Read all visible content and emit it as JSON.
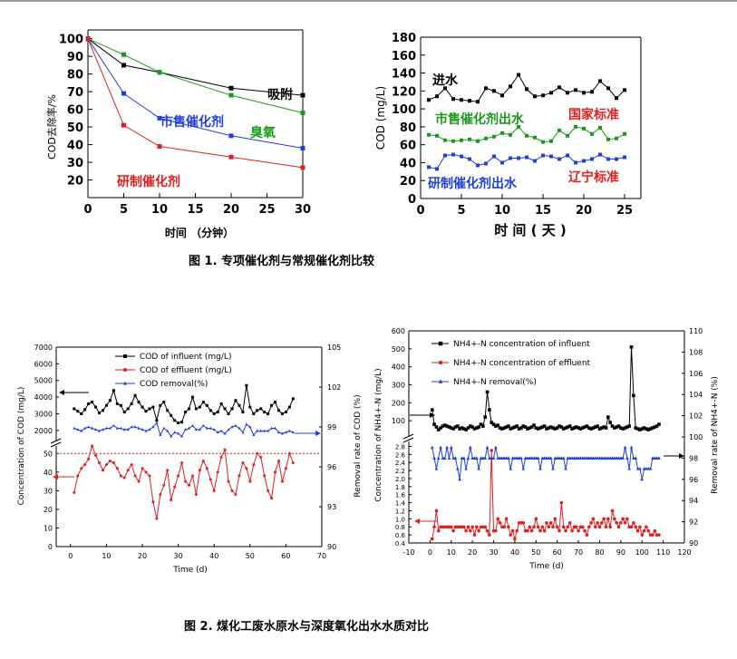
{
  "figure1": {
    "caption": "图 1. 专项催化剂与常规催化剂比较",
    "left": {
      "ylabel": "COD去除率/%",
      "xlabel": "时间 （分钟）",
      "x_ticks": [
        "0",
        "5",
        "10",
        "15",
        "20",
        "25",
        "30"
      ],
      "y_ticks": [
        "20",
        "30",
        "40",
        "50",
        "60",
        "70",
        "80",
        "90",
        "100"
      ],
      "labels": {
        "adsorb": "吸附",
        "ozone": "臭氧",
        "market": "市售催化剂",
        "dev": "研制催化剂"
      }
    },
    "right": {
      "ylabel": "COD (mg/L)",
      "xlabel": "时 间 ( 天 )",
      "x_ticks": [
        "0",
        "5",
        "10",
        "15",
        "20",
        "25"
      ],
      "y_ticks": [
        "0",
        "20",
        "40",
        "60",
        "80",
        "100",
        "120",
        "140",
        "160",
        "180"
      ],
      "labels": {
        "influent": "进水",
        "market": "市售催化剂出水",
        "dev": "研制催化剂出水",
        "national": "国家标准",
        "liaoning": "辽宁标准"
      }
    }
  },
  "figure2": {
    "caption": "图 2. 煤化工废水原水与深度氧化出水水质对比",
    "left": {
      "ylabel": "Concentration of COD (mg/L)",
      "ylabel_right": "Removal rate of COD (%)",
      "xlabel": "Time (d)",
      "x_ticks": [
        "0",
        "10",
        "20",
        "30",
        "40",
        "50",
        "60",
        "70"
      ],
      "y_top_ticks": [
        "2000",
        "3000",
        "4000",
        "5000",
        "6000",
        "7000"
      ],
      "y_bot_ticks": [
        "0",
        "10",
        "20",
        "30",
        "40",
        "50"
      ],
      "y_right_ticks": [
        "90",
        "93",
        "96",
        "99",
        "102",
        "105"
      ],
      "legend": [
        "COD of influent (mg/L)",
        "COD of effluent (mg/L)",
        "COD removal(%)"
      ]
    },
    "right": {
      "ylabel": "Concentration of NH4+-N (mg/L)",
      "ylabel_right": "Removal rate of NH4+-N (%)",
      "xlabel": "Time (d)",
      "x_ticks": [
        "-10",
        "0",
        "10",
        "20",
        "30",
        "40",
        "50",
        "60",
        "70",
        "80",
        "90",
        "100",
        "110",
        "120"
      ],
      "y_top_ticks": [
        "100",
        "200",
        "300",
        "400",
        "500",
        "600"
      ],
      "y_bot_ticks": [
        "0.4",
        "0.6",
        "0.8",
        "1.0",
        "1.2",
        "1.4",
        "1.6",
        "1.8",
        "2.0",
        "2.2",
        "2.4",
        "2.6",
        "2.8"
      ],
      "y_right_ticks": [
        "90",
        "92",
        "94",
        "96",
        "98",
        "100",
        "102",
        "104",
        "106",
        "108",
        "110"
      ],
      "legend": [
        "NH4+-N concentration of influent",
        "NH4+-N concentration of effluent",
        "NH4+-N removal(%)"
      ]
    }
  },
  "colors": {
    "black": "#000000",
    "green": "#1a9a1a",
    "blue": "#1f3fe0",
    "red": "#e02020"
  },
  "chart_data": [
    {
      "type": "line",
      "title": "",
      "xlabel": "时间 （分钟）",
      "ylabel": "COD去除率/%",
      "xlim": [
        0,
        30
      ],
      "ylim": [
        20,
        100
      ],
      "x": [
        0,
        5,
        10,
        20,
        30
      ],
      "series": [
        {
          "name": "吸附",
          "color": "#000000",
          "values": [
            100,
            85,
            81,
            72,
            68
          ]
        },
        {
          "name": "臭氧",
          "color": "#1a9a1a",
          "values": [
            100,
            91,
            81,
            68,
            58
          ]
        },
        {
          "name": "市售催化剂",
          "color": "#1f3fe0",
          "values": [
            100,
            69,
            55,
            45,
            38
          ]
        },
        {
          "name": "研制催化剂",
          "color": "#e02020",
          "values": [
            100,
            51,
            39,
            33,
            27
          ]
        }
      ]
    },
    {
      "type": "line",
      "title": "",
      "xlabel": "时 间 ( 天 )",
      "ylabel": "COD (mg/L)",
      "xlim": [
        0,
        27
      ],
      "ylim": [
        0,
        180
      ],
      "x": [
        1,
        2,
        3,
        4,
        5,
        6,
        7,
        8,
        9,
        10,
        11,
        12,
        13,
        14,
        15,
        16,
        17,
        18,
        19,
        20,
        21,
        22,
        23,
        24,
        25
      ],
      "series": [
        {
          "name": "进水",
          "color": "#000000",
          "values": [
            110,
            114,
            123,
            111,
            110,
            109,
            108,
            123,
            120,
            115,
            125,
            138,
            122,
            114,
            115,
            118,
            124,
            118,
            121,
            118,
            119,
            131,
            123,
            112,
            121
          ]
        },
        {
          "name": "市售催化剂出水",
          "color": "#1a9a1a",
          "values": [
            71,
            70,
            65,
            64,
            65,
            66,
            64,
            67,
            69,
            73,
            71,
            80,
            70,
            68,
            63,
            64,
            76,
            70,
            80,
            78,
            72,
            79,
            66,
            67,
            72
          ]
        },
        {
          "name": "研制催化剂出水",
          "color": "#1f3fe0",
          "values": [
            35,
            33,
            48,
            49,
            47,
            44,
            37,
            39,
            47,
            40,
            45,
            45,
            46,
            42,
            48,
            47,
            44,
            48,
            40,
            42,
            44,
            49,
            44,
            44,
            46
          ]
        }
      ]
    },
    {
      "type": "line",
      "title": "",
      "xlabel": "Time (d)",
      "ylabel": "Concentration of COD (mg/L)",
      "xlim": [
        -4,
        70
      ],
      "x": [
        1,
        2,
        3,
        4,
        5,
        6,
        7,
        8,
        9,
        10,
        11,
        12,
        13,
        14,
        15,
        16,
        17,
        18,
        19,
        20,
        21,
        22,
        23,
        24,
        25,
        26,
        27,
        28,
        29,
        30,
        31,
        32,
        33,
        34,
        35,
        36,
        37,
        38,
        39,
        40,
        41,
        42,
        43,
        44,
        45,
        46,
        47,
        48,
        49,
        50,
        51,
        52,
        53,
        54,
        55,
        56,
        57,
        58,
        59,
        60,
        61,
        62
      ],
      "series": [
        {
          "name": "COD of influent (mg/L)",
          "color": "#000000",
          "values": [
            3300,
            3150,
            3000,
            3250,
            3600,
            3700,
            3400,
            3050,
            3200,
            3500,
            3800,
            4400,
            3600,
            3500,
            3100,
            3300,
            3600,
            4100,
            3700,
            3400,
            3150,
            3300,
            3400,
            2600,
            3500,
            3700,
            3200,
            2900,
            2600,
            2450,
            2500,
            3100,
            3300,
            4000,
            3300,
            3400,
            3700,
            3500,
            3200,
            3000,
            3100,
            3600,
            3300,
            3000,
            3300,
            3800,
            3500,
            3100,
            4700,
            3400,
            3000,
            3200,
            3300,
            3100,
            3000,
            3500,
            3700,
            3200,
            3000,
            3100,
            3400,
            3900
          ]
        },
        {
          "name": "COD of effluent (mg/L)",
          "color": "#e02020",
          "values": [
            29,
            38,
            42,
            44,
            47,
            54,
            49,
            45,
            41,
            44,
            46,
            45,
            42,
            38,
            37,
            41,
            44,
            38,
            35,
            42,
            40,
            38,
            24,
            15,
            28,
            33,
            41,
            25,
            32,
            38,
            45,
            35,
            33,
            38,
            28,
            41,
            46,
            42,
            36,
            30,
            40,
            48,
            52,
            35,
            30,
            28,
            38,
            45,
            42,
            35,
            44,
            50,
            48,
            38,
            30,
            26,
            40,
            46,
            35,
            42,
            50,
            45
          ]
        },
        {
          "name": "COD removal(%)",
          "color": "#1f3fe0",
          "values": [
            98.9,
            98.8,
            98.7,
            98.9,
            99.0,
            98.9,
            98.8,
            98.7,
            98.8,
            98.9,
            98.9,
            99.1,
            98.9,
            98.9,
            98.8,
            98.8,
            99.0,
            99.0,
            98.9,
            98.8,
            98.7,
            98.8,
            99.0,
            99.3,
            98.4,
            98.9,
            98.7,
            98.3,
            98.6,
            98.5,
            98.3,
            98.8,
            98.9,
            99.1,
            98.8,
            98.8,
            99.1,
            98.9,
            98.9,
            98.8,
            98.6,
            98.7,
            98.5,
            98.8,
            99.0,
            99.1,
            98.9,
            98.6,
            99.2,
            99.0,
            98.4,
            98.7,
            98.7,
            98.7,
            98.7,
            98.9,
            98.9,
            98.6,
            98.5,
            98.6,
            98.7,
            98.6
          ]
        }
      ],
      "y_break_axis": {
        "top_range": [
          2000,
          7000
        ],
        "bottom_range": [
          0,
          50
        ]
      },
      "right_axis": {
        "label": "Removal rate of COD (%)",
        "range": [
          90,
          105
        ]
      },
      "reference_line": {
        "y": 50,
        "color": "#e02020",
        "style": "dotted"
      }
    },
    {
      "type": "line",
      "title": "",
      "xlabel": "Time (d)",
      "ylabel": "Concentration of NH4+-N (mg/L)",
      "xlim": [
        -10,
        120
      ],
      "x": [
        1,
        2,
        3,
        4,
        5,
        6,
        7,
        8,
        9,
        10,
        11,
        12,
        13,
        14,
        15,
        16,
        17,
        18,
        19,
        20,
        21,
        22,
        23,
        24,
        25,
        26,
        27,
        28,
        29,
        30,
        31,
        32,
        33,
        34,
        35,
        36,
        37,
        38,
        39,
        40,
        41,
        42,
        43,
        44,
        45,
        46,
        47,
        48,
        49,
        50,
        51,
        52,
        53,
        54,
        55,
        56,
        57,
        58,
        59,
        60,
        61,
        62,
        63,
        64,
        65,
        66,
        67,
        68,
        69,
        70,
        71,
        72,
        73,
        74,
        75,
        76,
        77,
        78,
        79,
        80,
        81,
        82,
        83,
        84,
        85,
        86,
        87,
        88,
        89,
        90,
        91,
        92,
        93,
        94,
        95,
        96,
        97,
        98,
        99,
        100,
        101,
        102,
        103,
        104,
        105,
        106,
        107,
        108
      ],
      "series": [
        {
          "name": "NH4+-N concentration of influent",
          "color": "#000000",
          "values": [
            160,
            80,
            65,
            50,
            60,
            70,
            75,
            70,
            65,
            60,
            55,
            65,
            70,
            55,
            60,
            55,
            50,
            60,
            70,
            65,
            55,
            60,
            65,
            80,
            70,
            120,
            260,
            160,
            90,
            80,
            70,
            75,
            60,
            55,
            60,
            65,
            70,
            55,
            60,
            65,
            70,
            55,
            60,
            70,
            65,
            55,
            60,
            65,
            75,
            60,
            55,
            60,
            65,
            70,
            55,
            60,
            65,
            60,
            55,
            60,
            70,
            65,
            55,
            60,
            65,
            70,
            55,
            60,
            65,
            60,
            55,
            60,
            65,
            70,
            60,
            55,
            60,
            65,
            70,
            55,
            60,
            65,
            60,
            120,
            90,
            70,
            60,
            65,
            70,
            60,
            55,
            60,
            65,
            70,
            510,
            240,
            60,
            55,
            50,
            55,
            60,
            55,
            50,
            55,
            60,
            65,
            70,
            80
          ]
        },
        {
          "name": "NH4+-N concentration of effluent",
          "color": "#e02020",
          "values": [
            0.5,
            0.8,
            1.2,
            0.7,
            0.8,
            0.8,
            0.8,
            0.8,
            0.8,
            0.8,
            0.7,
            0.8,
            0.8,
            0.8,
            0.8,
            0.8,
            0.7,
            0.8,
            0.7,
            0.8,
            0.6,
            0.8,
            0.7,
            0.8,
            0.8,
            0.8,
            0.7,
            0.6,
            2.7,
            0.7,
            0.7,
            1.0,
            0.9,
            0.8,
            0.8,
            1.0,
            0.8,
            0.6,
            0.7,
            0.5,
            0.7,
            0.9,
            0.9,
            0.9,
            0.7,
            0.7,
            0.8,
            0.7,
            0.8,
            1.0,
            0.8,
            0.7,
            0.8,
            0.7,
            0.9,
            0.8,
            0.9,
            0.8,
            1.0,
            0.8,
            0.7,
            1.4,
            0.8,
            0.7,
            0.8,
            0.9,
            0.7,
            0.8,
            0.8,
            0.7,
            0.8,
            0.8,
            0.7,
            0.6,
            0.8,
            0.9,
            1.0,
            0.8,
            0.9,
            0.8,
            0.9,
            1.0,
            0.8,
            1.0,
            0.8,
            1.2,
            1.0,
            0.9,
            0.8,
            0.9,
            1.0,
            0.9,
            1.0,
            0.8,
            0.8,
            0.9,
            0.8,
            0.7,
            0.8,
            0.6,
            0.7,
            0.8,
            0.7,
            0.6,
            0.6,
            0.7,
            0.6,
            0.6
          ]
        },
        {
          "name": "NH4+-N removal(%)",
          "color": "#1f3fe0",
          "values": [
            99,
            98,
            97,
            98,
            99,
            98,
            98,
            99,
            98,
            99,
            98,
            98,
            97,
            96,
            98,
            98,
            97,
            98,
            99,
            98,
            98,
            98,
            97,
            98,
            98,
            98,
            99,
            98,
            98,
            98,
            99,
            98,
            98,
            98,
            98,
            98,
            98,
            97,
            98,
            98,
            98,
            98,
            98,
            97,
            98,
            98,
            98,
            98,
            98,
            98,
            98,
            97,
            98,
            98,
            98,
            98,
            98,
            97,
            98,
            98,
            98,
            98,
            98,
            97,
            98,
            98,
            98,
            98,
            98,
            98,
            98,
            98,
            98,
            98,
            98,
            98,
            98,
            98,
            98,
            98,
            98,
            98,
            98,
            98,
            98,
            98,
            98,
            98,
            98,
            98,
            98,
            99,
            98,
            97,
            99,
            98,
            98,
            97,
            97,
            96,
            97,
            97,
            97,
            97,
            98,
            98,
            98,
            98
          ]
        }
      ],
      "y_break_axis": {
        "top_range": [
          100,
          600
        ],
        "bottom_range": [
          0.4,
          2.8
        ]
      },
      "right_axis": {
        "label": "Removal rate of NH4+-N (%)",
        "range": [
          90,
          110
        ]
      }
    }
  ]
}
